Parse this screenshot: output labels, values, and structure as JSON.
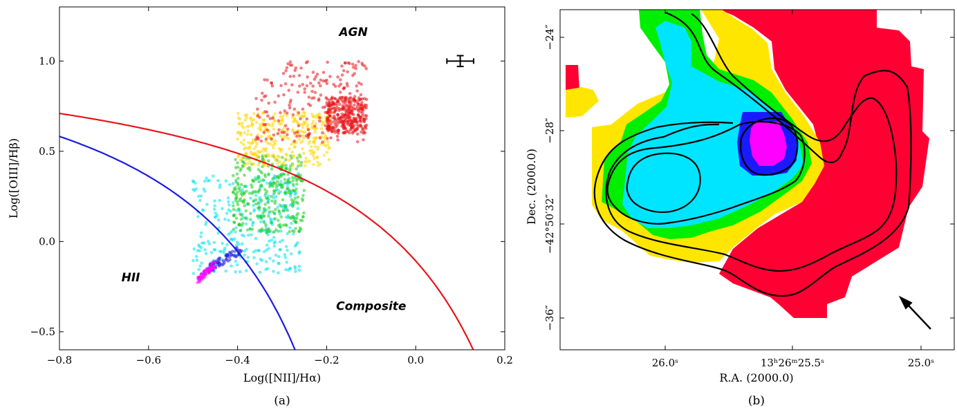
{
  "chart_data": [
    {
      "type": "scatter",
      "panel_label": "(a)",
      "xlabel": "Log([NII]/Hα)",
      "ylabel": "Log([OIII]/Hβ)",
      "xlim": [
        -0.8,
        0.2
      ],
      "ylim": [
        -0.6,
        1.3
      ],
      "xticks": [
        -0.8,
        -0.6,
        -0.4,
        -0.2,
        0.0,
        0.2
      ],
      "xtick_labels": [
        "−0.8",
        "−0.6",
        "−0.4",
        "−0.2",
        "0.0",
        "0.2"
      ],
      "yticks": [
        -0.5,
        0.0,
        0.5,
        1.0
      ],
      "ytick_labels": [
        "−0.5",
        "0.0",
        "0.5",
        "1.0"
      ],
      "grid": false,
      "annotations": [
        {
          "text": "AGN",
          "x": -0.14,
          "y": 1.14
        },
        {
          "text": "HII",
          "x": -0.64,
          "y": -0.22
        },
        {
          "text": "Composite",
          "x": -0.1,
          "y": -0.38
        }
      ],
      "error_bar": {
        "x": 0.1,
        "y": 1.0,
        "xerr": 0.03,
        "yerr": 0.03
      },
      "curves": [
        {
          "color": "#e8141a",
          "formula": "0.61/(x-0.47)+1.19"
        },
        {
          "color": "#1a1ae6",
          "formula": "0.61/(x-0.05)+1.3"
        }
      ],
      "series": [
        {
          "color": "#e8141a",
          "x_range": [
            -0.36,
            -0.11
          ],
          "y_range": [
            0.55,
            1.0
          ]
        },
        {
          "color": "#ffd700",
          "x_range": [
            -0.4,
            -0.19
          ],
          "y_range": [
            0.42,
            0.72
          ]
        },
        {
          "color": "#1fcc1f",
          "x_range": [
            -0.41,
            -0.25
          ],
          "y_range": [
            0.05,
            0.48
          ]
        },
        {
          "color": "#00e1ee",
          "x_range": [
            -0.5,
            -0.26
          ],
          "y_range": [
            -0.18,
            0.38
          ]
        },
        {
          "color": "#2222dd",
          "x_range": [
            -0.47,
            -0.39
          ],
          "y_range": [
            -0.18,
            -0.02
          ]
        },
        {
          "color": "#ff00ff",
          "x_range": [
            -0.49,
            -0.45
          ],
          "y_range": [
            -0.22,
            -0.1
          ]
        }
      ]
    },
    {
      "type": "heatmap",
      "panel_label": "(b)",
      "xlabel": "R.A. (2000.0)",
      "ylabel": "Dec. (2000.0)",
      "xtick_labels": [
        "26.0ˢ",
        "13ʰ26ᵐ25.5ˢ",
        "25.0ˢ"
      ],
      "ytick_labels": [
        "−24″",
        "−28″",
        "−42°50′32″",
        "−36″"
      ],
      "categories": [
        "red",
        "yellow",
        "green",
        "cyan",
        "blue",
        "magenta"
      ],
      "colors": [
        "#ff0033",
        "#ffe600",
        "#00ee00",
        "#00e5ff",
        "#1a1aff",
        "#ff00ff"
      ],
      "contours": 4,
      "arrow": "pointing up-left"
    }
  ]
}
